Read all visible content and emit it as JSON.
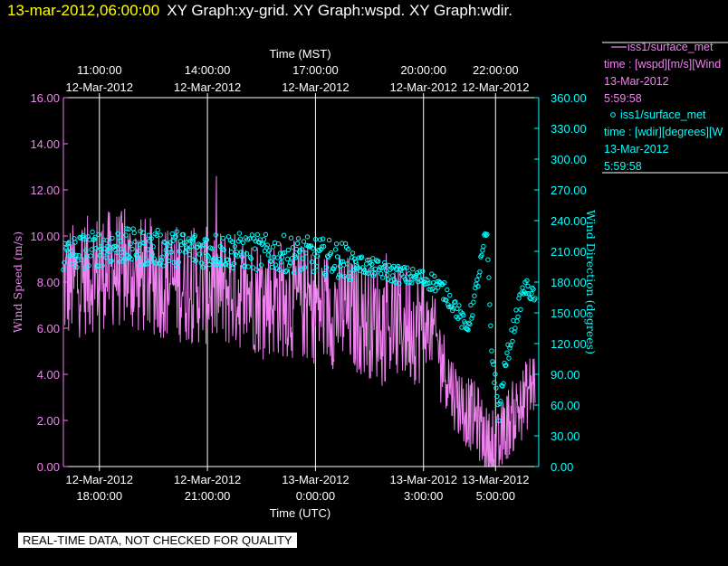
{
  "header": {
    "date_time": "13-mar-2012,06:00:00",
    "graphs": "XY Graph:xy-grid.  XY Graph:wspd.  XY Graph:wdir."
  },
  "colors": {
    "wspd": "#ee82ee",
    "wdir": "#00ffff",
    "grid": "#ffffff",
    "title_date": "#ffff00"
  },
  "legend": [
    {
      "marker": "line",
      "name": "iss1/surface_met",
      "line1": "time : [wspd][m/s][Wind",
      "date": "13-Mar-2012",
      "time": "5:59:58"
    },
    {
      "marker": "circle",
      "name": "iss1/surface_met",
      "line1": "time : [wdir][degrees][W",
      "date": "13-Mar-2012",
      "time": "5:59:58"
    }
  ],
  "disclaimer": "REAL-TIME DATA, NOT CHECKED FOR QUALITY",
  "chart_data": {
    "type": "line",
    "title": "XY Graph",
    "xlabel_bottom": "Time (UTC)",
    "xlabel_top": "Time (MST)",
    "ylabel_left": "Wind Speed (m/s)",
    "ylabel_right": "Wind Direction (degrees)",
    "x_range_utc_hours": [
      17.0,
      30.2
    ],
    "ylim_left": [
      0,
      16
    ],
    "ylim_right": [
      0,
      360
    ],
    "y_ticks_left": [
      "0.00",
      "2.00",
      "4.00",
      "6.00",
      "8.00",
      "10.00",
      "12.00",
      "14.00",
      "16.00"
    ],
    "y_ticks_right": [
      "0.00",
      "30.00",
      "60.00",
      "90.00",
      "120.00",
      "150.00",
      "180.00",
      "210.00",
      "240.00",
      "270.00",
      "300.00",
      "330.00",
      "360.00"
    ],
    "x_ticks_bottom": [
      {
        "hour": 18,
        "date": "12-Mar-2012",
        "time": "18:00:00"
      },
      {
        "hour": 21,
        "date": "12-Mar-2012",
        "time": "21:00:00"
      },
      {
        "hour": 24,
        "date": "13-Mar-2012",
        "time": "0:00:00"
      },
      {
        "hour": 27,
        "date": "13-Mar-2012",
        "time": "3:00:00"
      },
      {
        "hour": 29,
        "date": "13-Mar-2012",
        "time": "5:00:00"
      }
    ],
    "x_ticks_top": [
      {
        "hour": 18,
        "time": "11:00:00",
        "date": "12-Mar-2012"
      },
      {
        "hour": 21,
        "time": "14:00:00",
        "date": "12-Mar-2012"
      },
      {
        "hour": 24,
        "time": "17:00:00",
        "date": "12-Mar-2012"
      },
      {
        "hour": 27,
        "time": "20:00:00",
        "date": "12-Mar-2012"
      },
      {
        "hour": 29,
        "time": "22:00:00",
        "date": "12-Mar-2012"
      }
    ],
    "series": [
      {
        "name": "wspd",
        "axis": "left",
        "style": "line",
        "points": [
          [
            17.0,
            7.8
          ],
          [
            17.5,
            8.2
          ],
          [
            18.0,
            8.5
          ],
          [
            18.5,
            8.6
          ],
          [
            19.0,
            8.3
          ],
          [
            19.5,
            8.2
          ],
          [
            20.0,
            8.0
          ],
          [
            20.5,
            7.9
          ],
          [
            21.0,
            7.8
          ],
          [
            21.5,
            7.7
          ],
          [
            22.0,
            7.6
          ],
          [
            22.5,
            7.4
          ],
          [
            23.0,
            7.3
          ],
          [
            23.5,
            7.2
          ],
          [
            24.0,
            7.0
          ],
          [
            24.5,
            6.8
          ],
          [
            25.0,
            6.6
          ],
          [
            25.5,
            6.4
          ],
          [
            26.0,
            6.2
          ],
          [
            26.5,
            6.2
          ],
          [
            27.0,
            6.1
          ],
          [
            27.3,
            5.8
          ],
          [
            27.6,
            4.2
          ],
          [
            27.9,
            3.0
          ],
          [
            28.2,
            2.4
          ],
          [
            28.5,
            2.0
          ],
          [
            28.7,
            1.2
          ],
          [
            28.9,
            0.6
          ],
          [
            29.1,
            0.8
          ],
          [
            29.3,
            1.8
          ],
          [
            29.5,
            2.2
          ],
          [
            29.7,
            2.6
          ],
          [
            29.9,
            3.2
          ],
          [
            30.1,
            3.8
          ]
        ]
      },
      {
        "name": "wdir",
        "axis": "right",
        "style": "circle",
        "points": [
          [
            17.0,
            205
          ],
          [
            17.5,
            210
          ],
          [
            18.0,
            213
          ],
          [
            18.5,
            215
          ],
          [
            19.0,
            214
          ],
          [
            19.5,
            213
          ],
          [
            20.0,
            213
          ],
          [
            20.5,
            212
          ],
          [
            21.0,
            212
          ],
          [
            21.5,
            211
          ],
          [
            22.0,
            210
          ],
          [
            22.5,
            209
          ],
          [
            23.0,
            208
          ],
          [
            23.5,
            207
          ],
          [
            24.0,
            206
          ],
          [
            24.5,
            203
          ],
          [
            25.0,
            200
          ],
          [
            25.5,
            195
          ],
          [
            26.0,
            190
          ],
          [
            26.5,
            186
          ],
          [
            27.0,
            183
          ],
          [
            27.3,
            180
          ],
          [
            27.6,
            170
          ],
          [
            27.9,
            155
          ],
          [
            28.1,
            140
          ],
          [
            28.2,
            135
          ],
          [
            28.4,
            160
          ],
          [
            28.6,
            200
          ],
          [
            28.75,
            230
          ],
          [
            28.9,
            110
          ],
          [
            29.0,
            80
          ],
          [
            29.1,
            50
          ],
          [
            29.2,
            85
          ],
          [
            29.4,
            120
          ],
          [
            29.6,
            150
          ],
          [
            29.8,
            175
          ],
          [
            30.0,
            170
          ],
          [
            30.1,
            160
          ]
        ]
      }
    ]
  }
}
